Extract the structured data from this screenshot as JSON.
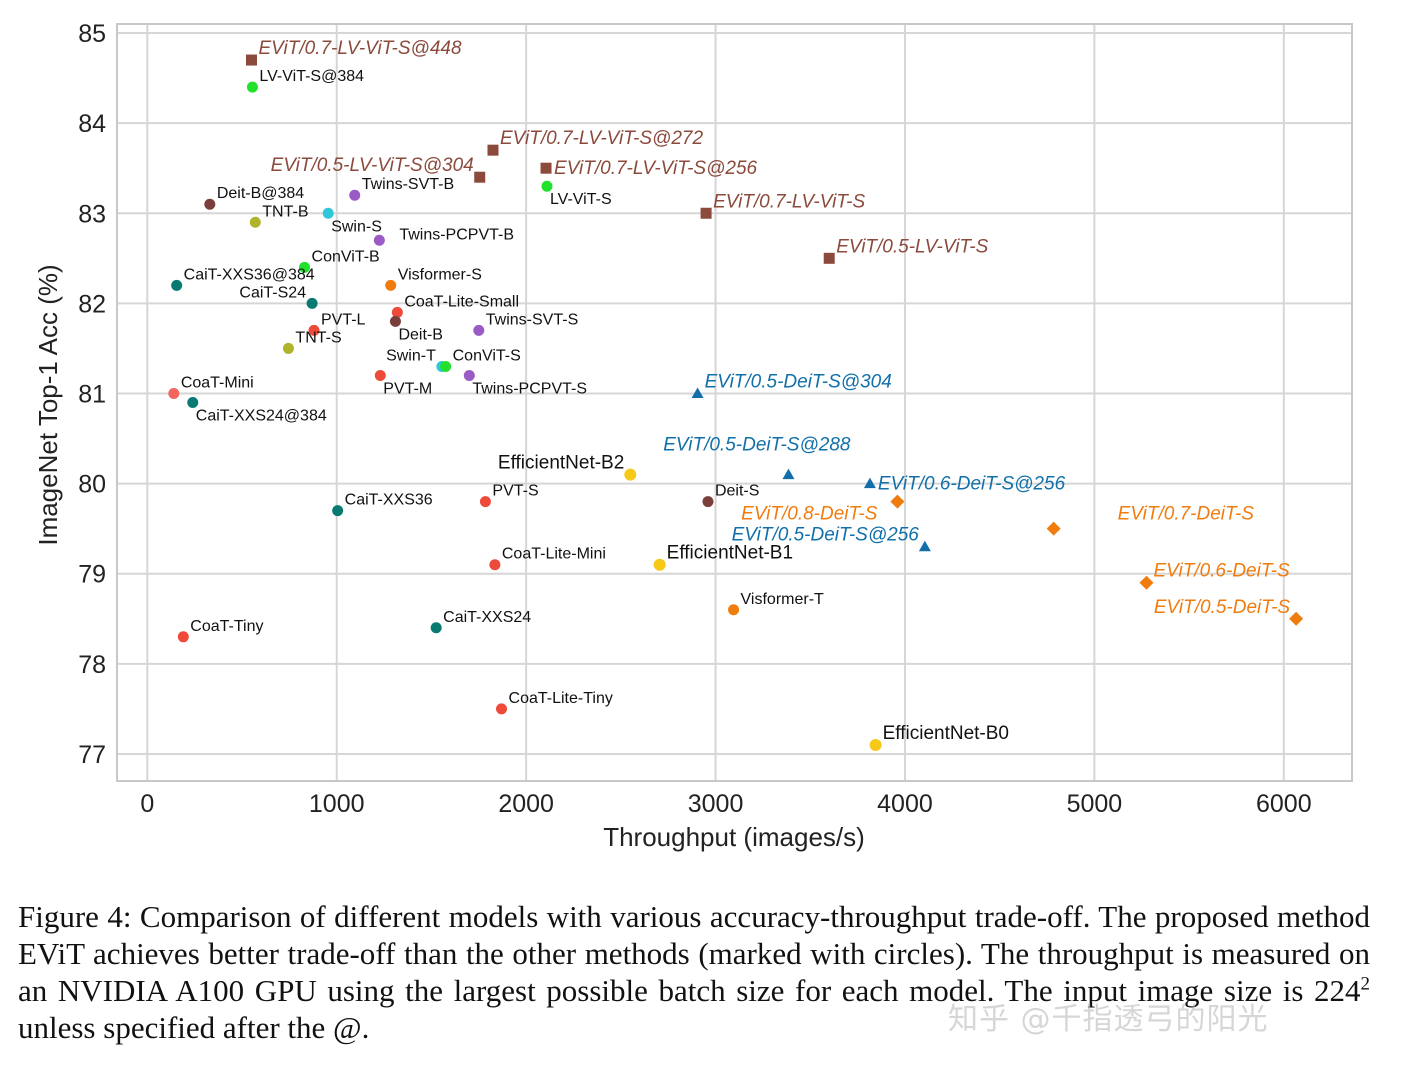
{
  "chart_data": {
    "type": "scatter",
    "xlabel": "Throughput (images/s)",
    "ylabel": "ImageNet Top-1 Acc (%)",
    "xlim": [
      -160,
      6360
    ],
    "ylim": [
      76.7,
      85.1
    ],
    "xticks": [
      0,
      1000,
      2000,
      3000,
      4000,
      5000,
      6000
    ],
    "yticks": [
      77,
      78,
      79,
      80,
      81,
      82,
      83,
      84,
      85
    ],
    "grid": true,
    "colors": {
      "brown": "#8b4a3c",
      "blue": "#1170aa",
      "orange": "#f17c0e",
      "green": "#21e12b",
      "teal": "#087a72",
      "purple": "#9a5bc4",
      "red": "#ee4a3a",
      "olive": "#b0b42a",
      "cyan": "#2ec8d8",
      "yellow": "#f6c919",
      "darkbrown": "#7a3f3a",
      "salmon": "#f2655e"
    },
    "points": [
      {
        "label": "EViT/0.7-LV-ViT-S@448",
        "x": 550,
        "y": 84.7,
        "marker": "square",
        "color": "brown",
        "italic": true,
        "pos": "right-up"
      },
      {
        "label": "LV-ViT-S@384",
        "x": 555,
        "y": 84.4,
        "marker": "circle",
        "color": "green",
        "pos": "right-up"
      },
      {
        "label": "EViT/0.7-LV-ViT-S@272",
        "x": 1825,
        "y": 83.7,
        "marker": "square",
        "color": "brown",
        "italic": true,
        "pos": "right-up"
      },
      {
        "label": "EViT/0.5-LV-ViT-S@304",
        "x": 1755,
        "y": 83.4,
        "marker": "square",
        "color": "brown",
        "italic": true,
        "pos": "left-up"
      },
      {
        "label": "EViT/0.7-LV-ViT-S@256",
        "x": 2105,
        "y": 83.5,
        "marker": "square",
        "color": "brown",
        "italic": true,
        "pos": "right"
      },
      {
        "label": "LV-ViT-S",
        "x": 2110,
        "y": 83.3,
        "marker": "circle",
        "color": "green",
        "pos": "right-down"
      },
      {
        "label": "EViT/0.7-LV-ViT-S",
        "x": 2950,
        "y": 83.0,
        "marker": "square",
        "color": "brown",
        "italic": true,
        "pos": "right-up"
      },
      {
        "label": "EViT/0.5-LV-ViT-S",
        "x": 3600,
        "y": 82.5,
        "marker": "square",
        "color": "brown",
        "italic": true,
        "pos": "right-up"
      },
      {
        "label": "Deit-B@384",
        "x": 330,
        "y": 83.1,
        "marker": "circle",
        "color": "darkbrown",
        "pos": "right-up"
      },
      {
        "label": "TNT-B",
        "x": 570,
        "y": 82.9,
        "marker": "circle",
        "color": "olive",
        "pos": "right-up"
      },
      {
        "label": "Twins-SVT-B",
        "x": 1095,
        "y": 83.2,
        "marker": "circle",
        "color": "purple",
        "pos": "right-up"
      },
      {
        "label": "Swin-S",
        "x": 955,
        "y": 83.0,
        "marker": "circle",
        "color": "cyan",
        "pos": "right-down"
      },
      {
        "label": "Twins-PCPVT-B",
        "x": 1225,
        "y": 82.7,
        "marker": "circle",
        "color": "purple",
        "pos": "far-right-up"
      },
      {
        "label": "ConViT-B",
        "x": 830,
        "y": 82.4,
        "marker": "circle",
        "color": "green",
        "pos": "right-up"
      },
      {
        "label": "CaiT-XXS36@384",
        "x": 155,
        "y": 82.2,
        "marker": "circle",
        "color": "teal",
        "pos": "right-up"
      },
      {
        "label": "Visformer-S",
        "x": 1285,
        "y": 82.2,
        "marker": "circle",
        "color": "orange",
        "pos": "right-up"
      },
      {
        "label": "CaiT-S24",
        "x": 870,
        "y": 82.0,
        "marker": "circle",
        "color": "teal",
        "pos": "left-up"
      },
      {
        "label": "CoaT-Lite-Small",
        "x": 1320,
        "y": 81.9,
        "marker": "circle",
        "color": "red",
        "pos": "right-up"
      },
      {
        "label": "PVT-L",
        "x": 880,
        "y": 81.7,
        "marker": "circle",
        "color": "red",
        "pos": "right-up"
      },
      {
        "label": "Deit-B",
        "x": 1310,
        "y": 81.8,
        "marker": "circle",
        "color": "darkbrown",
        "pos": "right-down"
      },
      {
        "label": "Twins-SVT-S",
        "x": 1750,
        "y": 81.7,
        "marker": "circle",
        "color": "purple",
        "pos": "right-up"
      },
      {
        "label": "TNT-S",
        "x": 745,
        "y": 81.5,
        "marker": "circle",
        "color": "olive",
        "pos": "right-up"
      },
      {
        "label": "Swin-T",
        "x": 1555,
        "y": 81.3,
        "marker": "circle",
        "color": "cyan",
        "pos": "left-up"
      },
      {
        "label": "ConViT-S",
        "x": 1575,
        "y": 81.3,
        "marker": "circle",
        "color": "green",
        "pos": "right-up"
      },
      {
        "label": "PVT-M",
        "x": 1230,
        "y": 81.2,
        "marker": "circle",
        "color": "red",
        "pos": "right-down"
      },
      {
        "label": "Twins-PCPVT-S",
        "x": 1700,
        "y": 81.2,
        "marker": "circle",
        "color": "purple",
        "pos": "right-down"
      },
      {
        "label": "CoaT-Mini",
        "x": 140,
        "y": 81.0,
        "marker": "circle",
        "color": "salmon",
        "pos": "right-up"
      },
      {
        "label": "CaiT-XXS24@384",
        "x": 240,
        "y": 80.9,
        "marker": "circle",
        "color": "teal",
        "pos": "right-down"
      },
      {
        "label": "EViT/0.5-DeiT-S@304",
        "x": 2905,
        "y": 81.0,
        "marker": "triangle",
        "color": "blue",
        "italic": true,
        "pos": "right-up"
      },
      {
        "label": "EViT/0.5-DeiT-S@288",
        "x": 3385,
        "y": 80.1,
        "marker": "triangle",
        "color": "blue",
        "italic": true,
        "pos": "left-up2"
      },
      {
        "label": "EViT/0.6-DeiT-S@256",
        "x": 3815,
        "y": 80.0,
        "marker": "triangle",
        "color": "blue",
        "italic": true,
        "pos": "right"
      },
      {
        "label": "EViT/0.5-DeiT-S@256",
        "x": 4105,
        "y": 79.3,
        "marker": "triangle",
        "color": "blue",
        "italic": true,
        "pos": "left-up"
      },
      {
        "label": "EfficientNet-B2",
        "x": 2550,
        "y": 80.1,
        "marker": "circle",
        "color": "yellow",
        "big": true,
        "pos": "left-up"
      },
      {
        "label": "Deit-S",
        "x": 2960,
        "y": 79.8,
        "marker": "circle",
        "color": "darkbrown",
        "pos": "right-up"
      },
      {
        "label": "EViT/0.8-DeiT-S",
        "x": 3960,
        "y": 79.8,
        "marker": "diamond",
        "color": "orange",
        "italic": true,
        "pos": "left-down"
      },
      {
        "label": "EViT/0.7-DeiT-S",
        "x": 4785,
        "y": 79.5,
        "marker": "diamond",
        "color": "orange",
        "italic": true,
        "pos": "far-right"
      },
      {
        "label": "EViT/0.6-DeiT-S",
        "x": 5275,
        "y": 78.9,
        "marker": "diamond",
        "color": "orange",
        "italic": true,
        "pos": "right-up"
      },
      {
        "label": "EViT/0.5-DeiT-S",
        "x": 6065,
        "y": 78.5,
        "marker": "diamond",
        "color": "orange",
        "italic": true,
        "pos": "left-up"
      },
      {
        "label": "CaiT-XXS36",
        "x": 1005,
        "y": 79.7,
        "marker": "circle",
        "color": "teal",
        "pos": "right-up"
      },
      {
        "label": "PVT-S",
        "x": 1785,
        "y": 79.8,
        "marker": "circle",
        "color": "red",
        "pos": "right-up"
      },
      {
        "label": "CoaT-Lite-Mini",
        "x": 1835,
        "y": 79.1,
        "marker": "circle",
        "color": "red",
        "pos": "right-up"
      },
      {
        "label": "EfficientNet-B1",
        "x": 2705,
        "y": 79.1,
        "marker": "circle",
        "color": "yellow",
        "big": true,
        "pos": "right-up"
      },
      {
        "label": "Visformer-T",
        "x": 3095,
        "y": 78.6,
        "marker": "circle",
        "color": "orange",
        "pos": "right-up"
      },
      {
        "label": "CoaT-Tiny",
        "x": 190,
        "y": 78.3,
        "marker": "circle",
        "color": "red",
        "pos": "right-up"
      },
      {
        "label": "CaiT-XXS24",
        "x": 1525,
        "y": 78.4,
        "marker": "circle",
        "color": "teal",
        "pos": "right-up"
      },
      {
        "label": "CoaT-Lite-Tiny",
        "x": 1870,
        "y": 77.5,
        "marker": "circle",
        "color": "red",
        "pos": "right-up"
      },
      {
        "label": "EfficientNet-B0",
        "x": 3845,
        "y": 77.1,
        "marker": "circle",
        "color": "yellow",
        "big": true,
        "pos": "right-up"
      }
    ]
  },
  "caption": {
    "text_a": "Figure 4: Comparison of different models with various accuracy-throughput trade-off. The proposed method EViT achieves better trade-off than the other methods (marked with circles). The throughput is measured on an NVIDIA A100 GPU using the largest possible batch size for each model. The input image size is 224",
    "superscript": "2",
    "text_b": " unless specified after the @."
  },
  "watermark": "知乎 @千指透弓的阳光"
}
